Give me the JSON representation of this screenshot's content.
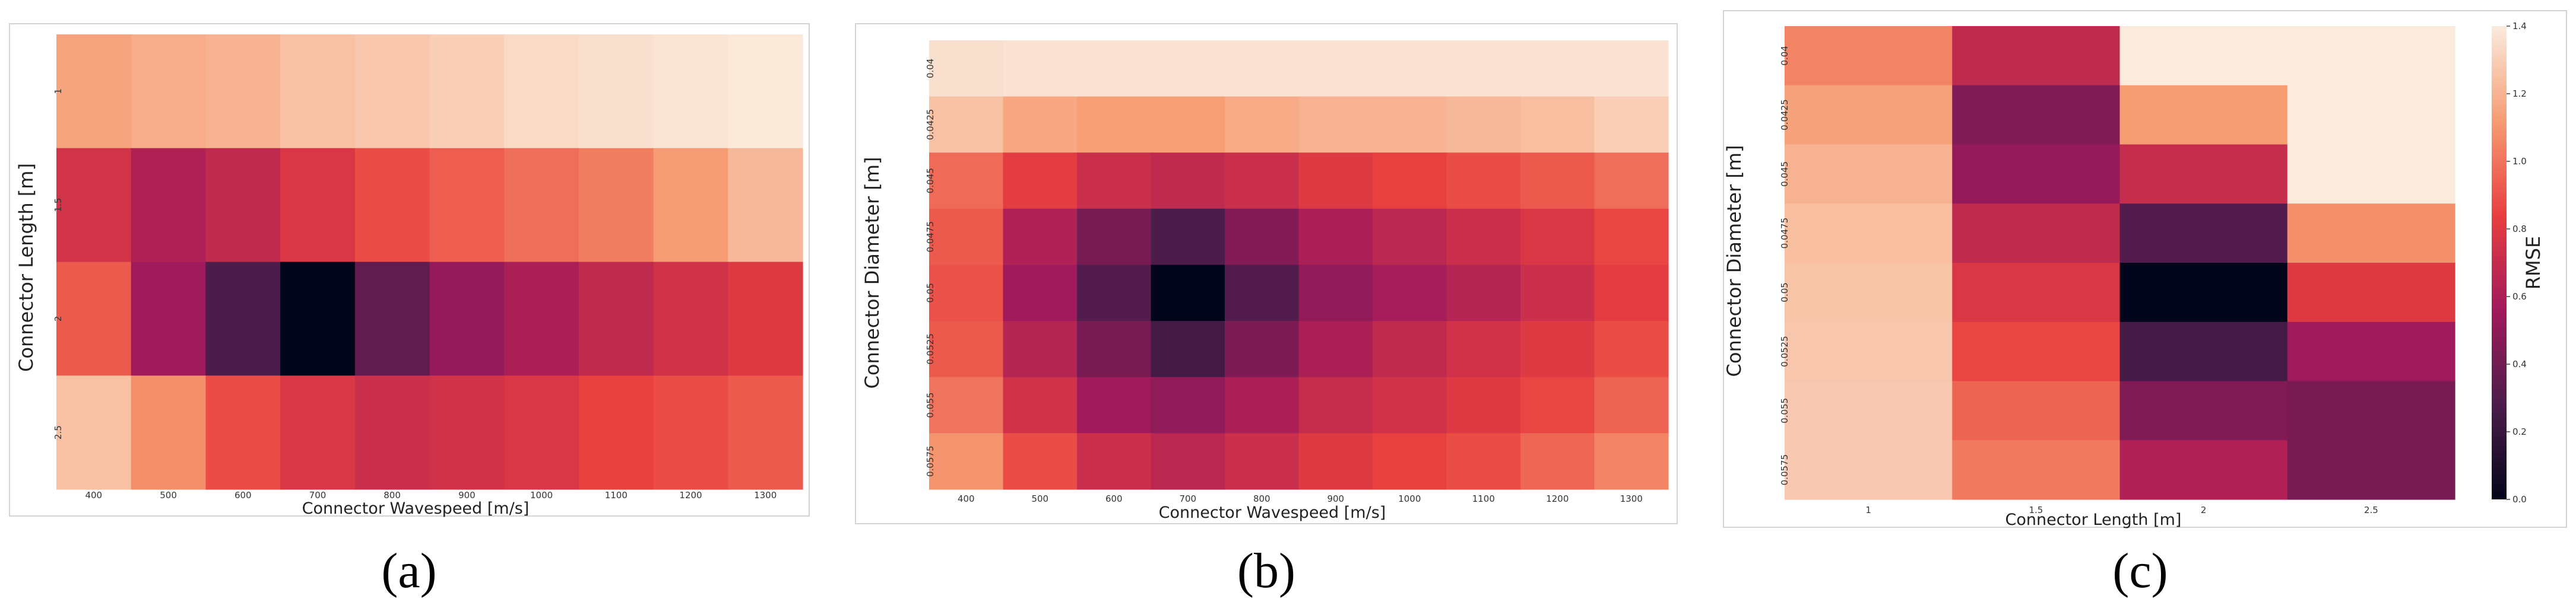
{
  "figure": {
    "panel_labels": [
      "(a)",
      "(b)",
      "(c)"
    ]
  },
  "colorbar": {
    "label": "RMSE",
    "min": 0.0,
    "max": 1.4,
    "ticks": [
      "0.0",
      "0.2",
      "0.4",
      "0.6",
      "0.8",
      "1.0",
      "1.2",
      "1.4"
    ],
    "colormap": "rocket",
    "stops": [
      "#03051a",
      "#4c1d4b",
      "#a11a5b",
      "#e83f3f",
      "#f69c73",
      "#faebdd"
    ]
  },
  "chart_data": [
    {
      "type": "heatmap",
      "panel": "(a)",
      "xlabel": "Connector Wavespeed [m/s]",
      "ylabel": "Connector Length [m]",
      "x_ticks": [
        "400",
        "500",
        "600",
        "700",
        "800",
        "900",
        "1000",
        "1100",
        "1200",
        "1300"
      ],
      "y_ticks": [
        "1",
        "1.5",
        "2",
        "2.5"
      ],
      "values": [
        [
          1.15,
          1.18,
          1.2,
          1.25,
          1.27,
          1.3,
          1.34,
          1.36,
          1.38,
          1.39
        ],
        [
          0.75,
          0.62,
          0.68,
          0.78,
          0.88,
          0.93,
          0.98,
          1.03,
          1.12,
          1.22
        ],
        [
          0.92,
          0.55,
          0.28,
          0.0,
          0.35,
          0.52,
          0.6,
          0.68,
          0.74,
          0.8
        ],
        [
          1.25,
          1.08,
          0.88,
          0.78,
          0.72,
          0.74,
          0.78,
          0.84,
          0.88,
          0.92
        ]
      ]
    },
    {
      "type": "heatmap",
      "panel": "(b)",
      "xlabel": "Connector Wavespeed [m/s]",
      "ylabel": "Connector Diameter [m]",
      "x_ticks": [
        "400",
        "500",
        "600",
        "700",
        "800",
        "900",
        "1000",
        "1100",
        "1200",
        "1300"
      ],
      "y_ticks": [
        "0.04",
        "0.0425",
        "0.045",
        "0.0475",
        "0.05",
        "0.0525",
        "0.055",
        "0.0575"
      ],
      "values": [
        [
          1.36,
          1.37,
          1.37,
          1.37,
          1.37,
          1.37,
          1.37,
          1.37,
          1.37,
          1.37
        ],
        [
          1.25,
          1.16,
          1.13,
          1.13,
          1.17,
          1.2,
          1.2,
          1.22,
          1.24,
          1.3
        ],
        [
          0.97,
          0.82,
          0.72,
          0.68,
          0.72,
          0.8,
          0.84,
          0.88,
          0.92,
          0.98
        ],
        [
          0.92,
          0.62,
          0.42,
          0.28,
          0.46,
          0.6,
          0.66,
          0.72,
          0.78,
          0.86
        ],
        [
          0.9,
          0.56,
          0.3,
          0.0,
          0.3,
          0.5,
          0.58,
          0.64,
          0.72,
          0.82
        ],
        [
          0.92,
          0.64,
          0.42,
          0.24,
          0.44,
          0.6,
          0.68,
          0.74,
          0.8,
          0.88
        ],
        [
          1.0,
          0.74,
          0.56,
          0.5,
          0.6,
          0.7,
          0.74,
          0.8,
          0.86,
          0.95
        ],
        [
          1.1,
          0.88,
          0.72,
          0.66,
          0.72,
          0.8,
          0.84,
          0.88,
          0.96,
          1.05
        ]
      ]
    },
    {
      "type": "heatmap",
      "panel": "(c)",
      "xlabel": "Connector Length [m]",
      "ylabel": "Connector Diameter [m]",
      "x_ticks": [
        "1",
        "1.5",
        "2",
        "2.5"
      ],
      "y_ticks": [
        "0.04",
        "0.0425",
        "0.045",
        "0.0475",
        "0.05",
        "0.0525",
        "0.055",
        "0.0575"
      ],
      "values": [
        [
          1.05,
          0.68,
          1.4,
          1.4
        ],
        [
          1.14,
          0.45,
          1.12,
          1.4
        ],
        [
          1.2,
          0.52,
          0.7,
          1.4
        ],
        [
          1.24,
          0.68,
          0.3,
          1.08
        ],
        [
          1.26,
          0.78,
          0.0,
          0.8
        ],
        [
          1.27,
          0.86,
          0.25,
          0.55
        ],
        [
          1.28,
          0.95,
          0.45,
          0.42
        ],
        [
          1.28,
          1.02,
          0.62,
          0.42
        ]
      ]
    }
  ]
}
